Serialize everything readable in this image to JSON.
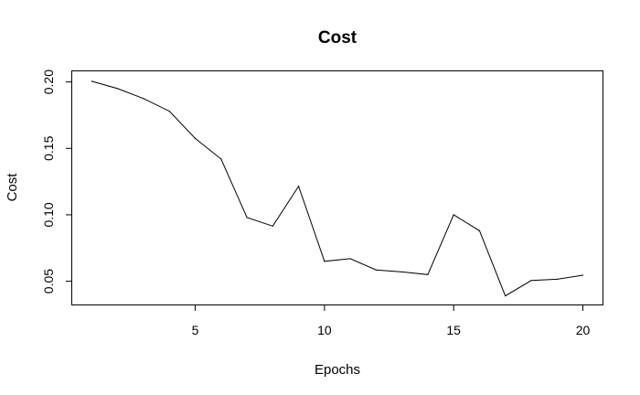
{
  "chart_data": {
    "type": "line",
    "title": "Cost",
    "xlabel": "Epochs",
    "ylabel": "Cost",
    "xlim": [
      0.24,
      20.76
    ],
    "ylim": [
      0.0325,
      0.208
    ],
    "xticks": [
      5,
      10,
      15,
      20
    ],
    "yticks": [
      0.05,
      0.1,
      0.15,
      0.2
    ],
    "xtick_labels": [
      "5",
      "10",
      "15",
      "20"
    ],
    "ytick_labels": [
      "0.05",
      "0.10",
      "0.15",
      "0.20"
    ],
    "grid": false,
    "legend": "none",
    "line_color": "#000000",
    "series": [
      {
        "x": [
          1,
          2,
          3,
          4,
          5,
          6,
          7,
          8,
          9,
          10,
          11,
          12,
          13,
          14,
          15,
          16,
          17,
          18,
          19,
          20
        ],
        "values": [
          0.2005,
          0.195,
          0.1875,
          0.178,
          0.1575,
          0.142,
          0.098,
          0.0915,
          0.1215,
          0.065,
          0.067,
          0.0585,
          0.057,
          0.055,
          0.1,
          0.088,
          0.039,
          0.0505,
          0.0515,
          0.0545
        ]
      }
    ]
  }
}
